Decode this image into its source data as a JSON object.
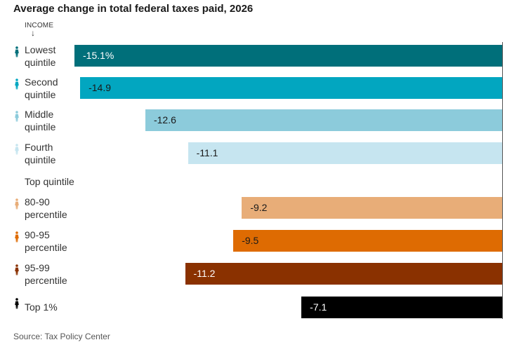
{
  "title": "Average change in total federal taxes paid, 2026",
  "income_header": "INCOME",
  "income_arrow": "↓",
  "section_top": "Top quintile",
  "source": "Source: Tax Policy Center",
  "chart_data": {
    "type": "bar",
    "orientation": "horizontal",
    "title": "Average change in total federal taxes paid, 2026",
    "xlabel": "",
    "ylabel": "Income",
    "xlim": [
      -15.1,
      0
    ],
    "categories": [
      {
        "line1": "Lowest",
        "line2": "quintile",
        "value": -15.1,
        "label": "-15.1%",
        "color": "#006f7a",
        "text_color": "#ffffff"
      },
      {
        "line1": "Second",
        "line2": "quintile",
        "value": -14.9,
        "label": "-14.9",
        "color": "#02a6c0",
        "text_color": "#1a1a1a"
      },
      {
        "line1": "Middle",
        "line2": "quintile",
        "value": -12.6,
        "label": "-12.6",
        "color": "#8ccbdb",
        "text_color": "#1a1a1a"
      },
      {
        "line1": "Fourth",
        "line2": "quintile",
        "value": -11.1,
        "label": "-11.1",
        "color": "#c6e5f0",
        "text_color": "#1a1a1a"
      },
      {
        "line1": "80-90",
        "line2": "percentile",
        "value": -9.2,
        "label": "-9.2",
        "color": "#e8ad78",
        "text_color": "#1a1a1a"
      },
      {
        "line1": "90-95",
        "line2": "percentile",
        "value": -9.5,
        "label": "-9.5",
        "color": "#de6b02",
        "text_color": "#1a1a1a"
      },
      {
        "line1": "95-99",
        "line2": "percentile",
        "value": -11.2,
        "label": "-11.2",
        "color": "#8a3100",
        "text_color": "#ffffff"
      },
      {
        "line1": "Top 1%",
        "line2": "",
        "value": -7.1,
        "label": "-7.1",
        "color": "#000000",
        "text_color": "#ffffff"
      }
    ]
  }
}
